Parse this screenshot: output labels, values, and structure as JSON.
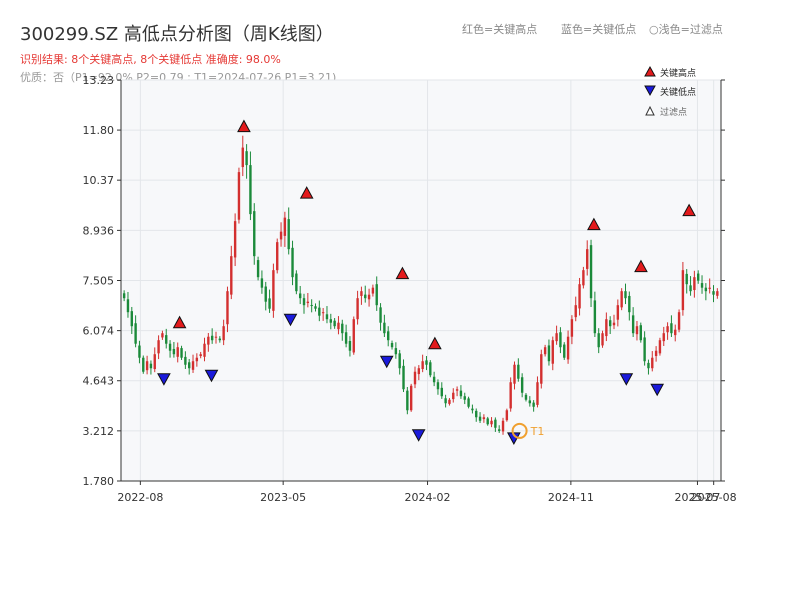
{
  "header": {
    "title": "300299.SZ 高低点分析图（周K线图）",
    "subtitle_result": "识别结果: 8个关键高点, 8个关键低点  准确度: 98.0%",
    "subtitle_quality": "优质：否（P1=92.0%  P2=0.79 ; T1=2024-07-26 P1=3.21)",
    "legend_red": "红色=关键高点",
    "legend_blue": "蓝色=关键低点",
    "legend_light": "浅色=过滤点"
  },
  "colors": {
    "up": "#d32f2f",
    "down": "#1b8a3a",
    "high_marker": "#e31a1c",
    "low_marker": "#1a1adb",
    "t1_ring": "#f0a030",
    "plot_bg": "#f7f8fa"
  },
  "chart_data": {
    "type": "candlestick",
    "y_ticks": [
      1.78,
      3.212,
      4.643,
      6.074,
      7.505,
      8.936,
      10.37,
      11.8,
      13.23
    ],
    "y_tick_labels": [
      "1.780",
      "3.212",
      "4.643",
      "6.074",
      "7.505",
      "8.936",
      "10.37",
      "11.80",
      "13.23"
    ],
    "ylim": [
      1.78,
      13.23
    ],
    "x_ticks": [
      "2022-08",
      "2023-05",
      "2024-02",
      "2024-11",
      "2025-07",
      "2025-08"
    ],
    "key_highs": [
      {
        "date": "2022-10",
        "value": 6.1
      },
      {
        "date": "2023-02",
        "value": 11.7
      },
      {
        "date": "2023-06",
        "value": 9.8
      },
      {
        "date": "2023-12",
        "value": 7.5
      },
      {
        "date": "2024-02",
        "value": 5.5
      },
      {
        "date": "2024-12",
        "value": 8.9
      },
      {
        "date": "2025-03",
        "value": 7.7
      },
      {
        "date": "2025-06",
        "value": 9.3
      }
    ],
    "key_lows": [
      {
        "date": "2022-09",
        "value": 4.9
      },
      {
        "date": "2022-12",
        "value": 5.0
      },
      {
        "date": "2023-05",
        "value": 6.6
      },
      {
        "date": "2023-11",
        "value": 5.4
      },
      {
        "date": "2024-01",
        "value": 3.3
      },
      {
        "date": "2024-07",
        "value": 3.21
      },
      {
        "date": "2025-02",
        "value": 4.9
      },
      {
        "date": "2025-04",
        "value": 4.6
      }
    ],
    "t1": {
      "date": "2024-07-26",
      "value": 3.21,
      "label": "T1"
    },
    "legend": [
      "关键高点",
      "关键低点",
      "过滤点"
    ],
    "grid": true,
    "legend_position": "top-right",
    "closes": [
      7.0,
      6.6,
      6.2,
      5.7,
      5.3,
      4.9,
      5.2,
      5.0,
      5.4,
      5.8,
      6.0,
      5.7,
      5.5,
      5.4,
      5.6,
      5.3,
      5.1,
      5.0,
      5.2,
      5.3,
      5.4,
      5.7,
      5.9,
      5.8,
      5.9,
      5.8,
      6.2,
      7.2,
      8.2,
      9.2,
      10.6,
      11.3,
      10.8,
      9.4,
      8.2,
      7.6,
      7.3,
      6.9,
      6.7,
      7.8,
      8.6,
      8.9,
      9.3,
      8.4,
      7.6,
      7.2,
      7.0,
      6.8,
      6.9,
      6.8,
      6.7,
      6.5,
      6.6,
      6.4,
      6.3,
      6.2,
      6.3,
      6.0,
      5.7,
      5.5,
      6.4,
      7.0,
      7.2,
      7.0,
      7.1,
      7.3,
      6.8,
      6.3,
      6.0,
      5.8,
      5.6,
      5.4,
      5.0,
      4.4,
      3.8,
      4.5,
      4.9,
      5.0,
      5.2,
      5.1,
      4.8,
      4.6,
      4.4,
      4.2,
      4.0,
      4.1,
      4.3,
      4.4,
      4.2,
      4.1,
      3.9,
      3.8,
      3.6,
      3.5,
      3.6,
      3.4,
      3.5,
      3.3,
      3.21,
      3.5,
      3.8,
      4.6,
      5.1,
      4.7,
      4.3,
      4.1,
      4.0,
      3.9,
      4.6,
      5.4,
      5.6,
      5.2,
      5.8,
      6.0,
      5.6,
      5.3,
      5.9,
      6.4,
      6.8,
      7.4,
      7.8,
      8.4,
      7.0,
      6.0,
      5.6,
      6.0,
      6.4,
      6.2,
      6.3,
      6.8,
      7.2,
      7.0,
      6.6,
      6.0,
      6.2,
      5.8,
      5.2,
      5.0,
      5.3,
      5.5,
      5.8,
      6.0,
      6.2,
      6.0,
      6.1,
      6.6,
      7.8,
      7.4,
      7.2,
      7.6,
      7.5,
      7.3,
      7.2,
      7.3,
      7.1,
      7.2
    ]
  }
}
